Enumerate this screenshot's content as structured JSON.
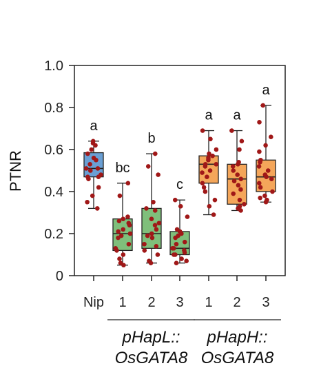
{
  "chart_data": {
    "type": "box",
    "ylabel": "PTNR",
    "ylim": [
      0,
      1.0
    ],
    "yticks": [
      {
        "value": 0,
        "label": "0"
      },
      {
        "value": 0.2,
        "label": "0.2"
      },
      {
        "value": 0.4,
        "label": "0.4"
      },
      {
        "value": 0.6,
        "label": "0.6"
      },
      {
        "value": 0.8,
        "label": "0.8"
      },
      {
        "value": 1.0,
        "label": "1.0"
      }
    ],
    "grid": false,
    "groups": [
      {
        "line1": "pHapL::",
        "line2": "OsGATA8",
        "members": [
          1,
          2,
          3
        ]
      },
      {
        "line1": "pHapH::",
        "line2": "OsGATA8",
        "members": [
          4,
          5,
          6
        ]
      }
    ],
    "categories": [
      {
        "label": "Nip",
        "color": "#6a9fd4",
        "letter": "a",
        "box": {
          "min": 0.32,
          "q1": 0.47,
          "median": 0.51,
          "q3": 0.585,
          "max": 0.64
        },
        "points": [
          0.32,
          0.35,
          0.38,
          0.42,
          0.46,
          0.47,
          0.47,
          0.48,
          0.5,
          0.51,
          0.51,
          0.53,
          0.55,
          0.56,
          0.58,
          0.6,
          0.62,
          0.63,
          0.64
        ]
      },
      {
        "label": "1",
        "color": "#7fbf7b",
        "letter": "bc",
        "box": {
          "min": 0.05,
          "q1": 0.12,
          "median": 0.2,
          "q3": 0.27,
          "max": 0.44
        },
        "points": [
          0.05,
          0.06,
          0.08,
          0.1,
          0.12,
          0.13,
          0.15,
          0.18,
          0.19,
          0.2,
          0.21,
          0.22,
          0.24,
          0.25,
          0.26,
          0.27,
          0.28,
          0.38,
          0.44
        ]
      },
      {
        "label": "2",
        "color": "#7fbf7b",
        "letter": "b",
        "box": {
          "min": 0.06,
          "q1": 0.13,
          "median": 0.2,
          "q3": 0.32,
          "max": 0.58
        },
        "points": [
          0.06,
          0.07,
          0.1,
          0.12,
          0.14,
          0.15,
          0.18,
          0.19,
          0.2,
          0.22,
          0.24,
          0.25,
          0.27,
          0.31,
          0.32,
          0.35,
          0.48,
          0.52,
          0.58
        ]
      },
      {
        "label": "3",
        "color": "#7fbf7b",
        "letter": "c",
        "box": {
          "min": 0.06,
          "q1": 0.1,
          "median": 0.13,
          "q3": 0.21,
          "max": 0.36
        },
        "points": [
          0.06,
          0.07,
          0.08,
          0.1,
          0.1,
          0.11,
          0.12,
          0.13,
          0.13,
          0.15,
          0.16,
          0.18,
          0.19,
          0.2,
          0.21,
          0.22,
          0.28,
          0.33,
          0.36
        ]
      },
      {
        "label": "1",
        "color": "#f4a65a",
        "letter": "a",
        "box": {
          "min": 0.29,
          "q1": 0.44,
          "median": 0.53,
          "q3": 0.57,
          "max": 0.69
        },
        "points": [
          0.29,
          0.33,
          0.36,
          0.4,
          0.42,
          0.44,
          0.47,
          0.49,
          0.5,
          0.52,
          0.53,
          0.53,
          0.55,
          0.56,
          0.57,
          0.58,
          0.6,
          0.65,
          0.69
        ]
      },
      {
        "label": "2",
        "color": "#f4a65a",
        "letter": "a",
        "box": {
          "min": 0.31,
          "q1": 0.34,
          "median": 0.46,
          "q3": 0.53,
          "max": 0.69
        },
        "points": [
          0.31,
          0.32,
          0.33,
          0.34,
          0.36,
          0.39,
          0.41,
          0.43,
          0.45,
          0.46,
          0.48,
          0.5,
          0.52,
          0.53,
          0.54,
          0.6,
          0.64,
          0.69
        ]
      },
      {
        "label": "3",
        "color": "#f4a65a",
        "letter": "a",
        "box": {
          "min": 0.35,
          "q1": 0.4,
          "median": 0.47,
          "q3": 0.55,
          "max": 0.81
        },
        "points": [
          0.35,
          0.36,
          0.37,
          0.38,
          0.4,
          0.42,
          0.44,
          0.46,
          0.47,
          0.48,
          0.5,
          0.52,
          0.54,
          0.55,
          0.59,
          0.62,
          0.66,
          0.73,
          0.81
        ]
      }
    ]
  }
}
